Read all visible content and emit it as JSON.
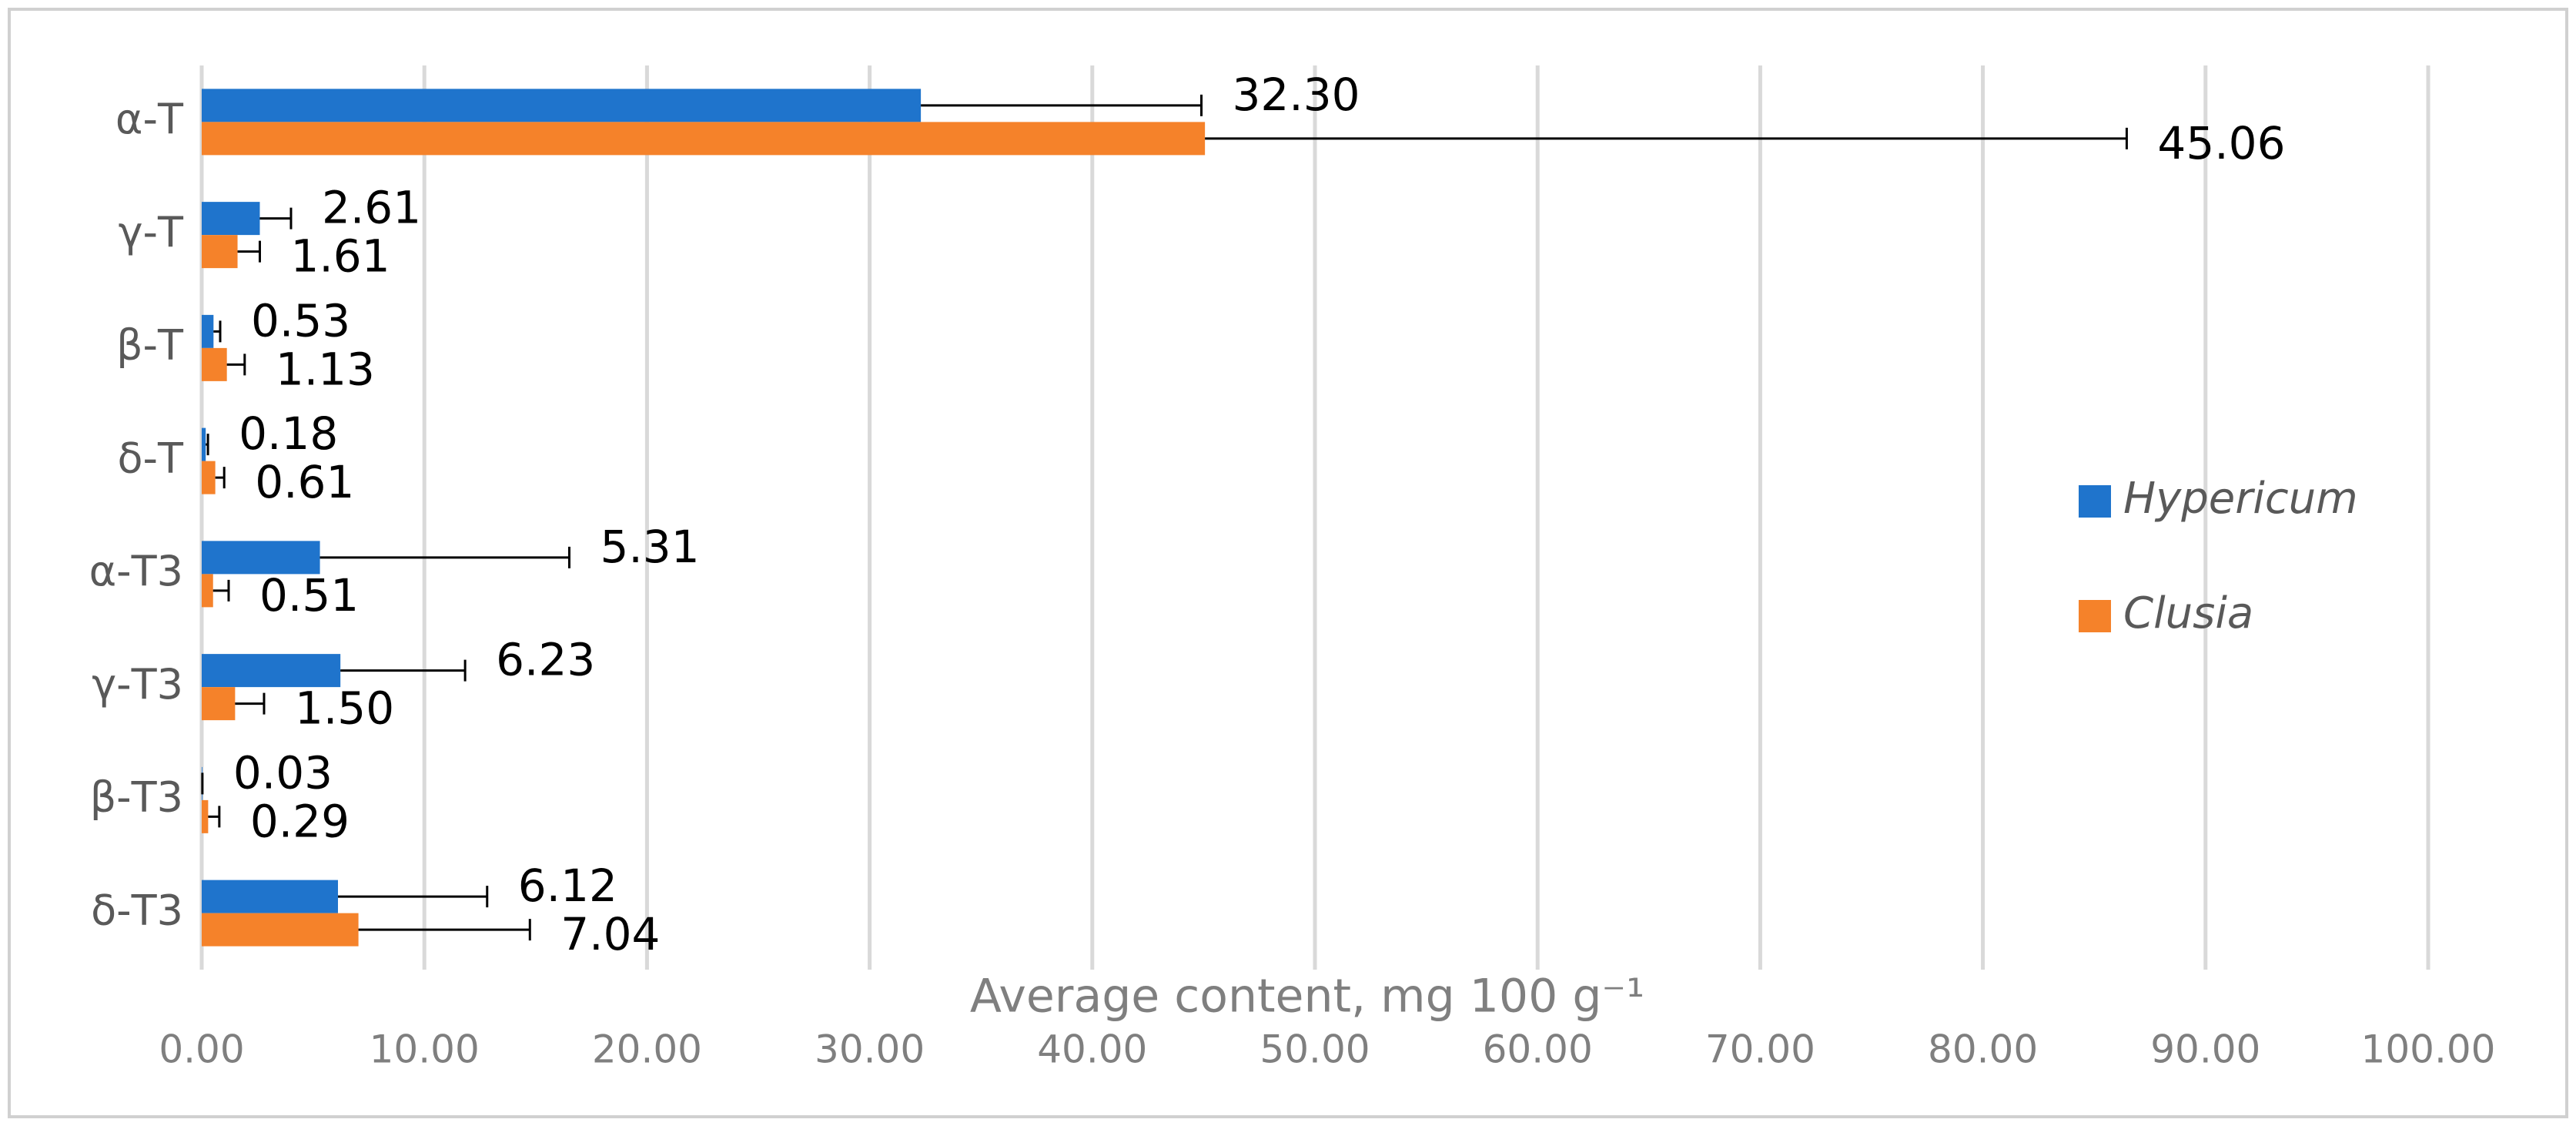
{
  "chart_data": {
    "type": "hbar",
    "x_label": "Average content, mg 100 g⁻¹",
    "categories": [
      "α-T",
      "γ-T",
      "β-T",
      "δ-T",
      "α-T3",
      "γ-T3",
      "β-T3",
      "δ-T3"
    ],
    "series": [
      {
        "name": "Hypericum",
        "color": "#1f74cc",
        "values": [
          32.3,
          2.61,
          0.53,
          0.18,
          5.31,
          6.23,
          0.03,
          6.12
        ],
        "value_labels": [
          "32.30",
          "2.61",
          "0.53",
          "0.18",
          "5.31",
          "6.23",
          "0.03",
          "6.12"
        ],
        "errors": [
          12.6,
          1.4,
          0.3,
          0.1,
          11.2,
          5.6,
          0,
          6.7
        ]
      },
      {
        "name": "Clusia",
        "color": "#f5822a",
        "values": [
          45.06,
          1.61,
          1.13,
          0.61,
          0.51,
          1.5,
          0.29,
          7.04
        ],
        "value_labels": [
          "45.06",
          "1.61",
          "1.13",
          "0.61",
          "0.51",
          "1.50",
          "0.29",
          "7.04"
        ],
        "errors": [
          41.4,
          1.0,
          0.8,
          0.4,
          0.7,
          1.3,
          0.5,
          7.7
        ]
      }
    ],
    "xlim": [
      0,
      100
    ],
    "xticks": [
      {
        "value": 0,
        "label": "0.00"
      },
      {
        "value": 10,
        "label": "10.00"
      },
      {
        "value": 20,
        "label": "20.00"
      },
      {
        "value": 30,
        "label": "30.00"
      },
      {
        "value": 40,
        "label": "40.00"
      },
      {
        "value": 50,
        "label": "50.00"
      },
      {
        "value": 60,
        "label": "60.00"
      },
      {
        "value": 70,
        "label": "70.00"
      },
      {
        "value": 80,
        "label": "80.00"
      },
      {
        "value": 90,
        "label": "90.00"
      },
      {
        "value": 100,
        "label": "100.00"
      }
    ],
    "grid": true,
    "legend": "right"
  }
}
